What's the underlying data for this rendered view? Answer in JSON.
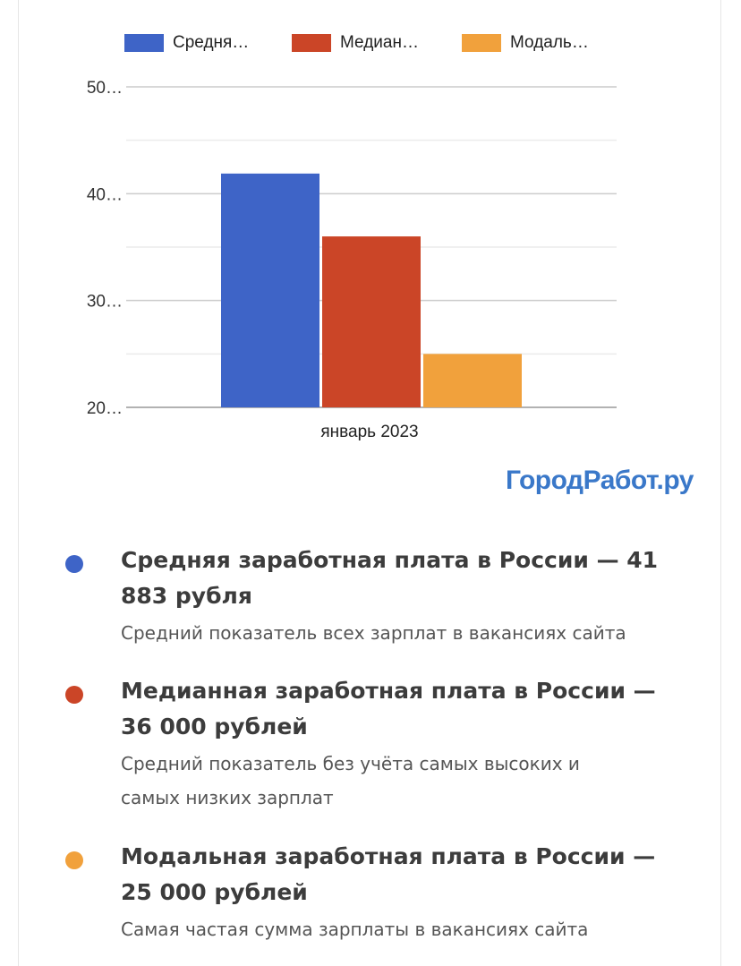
{
  "chart_data": {
    "type": "bar",
    "categories": [
      "январь 2023"
    ],
    "series": [
      {
        "name": "Средня…",
        "values": [
          41883
        ],
        "color": "#3e64c7"
      },
      {
        "name": "Медиан…",
        "values": [
          36000
        ],
        "color": "#cb4527"
      },
      {
        "name": "Модаль…",
        "values": [
          25000
        ],
        "color": "#f1a13c"
      }
    ],
    "y_ticks": [
      {
        "value": 20000,
        "label": "20…"
      },
      {
        "value": 30000,
        "label": "30…"
      },
      {
        "value": 40000,
        "label": "40…"
      },
      {
        "value": 50000,
        "label": "50…"
      }
    ],
    "ylim": [
      20000,
      50000
    ],
    "grid": true,
    "legend_position": "top"
  },
  "watermark": "ГородРабот.ру",
  "info_items": [
    {
      "title": "Средняя заработная плата в России — 41 883 рубля",
      "title_lines": [
        "Средняя заработная плата в России — 41",
        "883 рубля"
      ],
      "description_lines": [
        "Средний показатель всех зарплат в вакансиях сайта"
      ],
      "color": "#3e64c7"
    },
    {
      "title": "Медианная заработная плата в России — 36 000 рублей",
      "title_lines": [
        "Медианная заработная плата в России —",
        "36 000 рублей"
      ],
      "description_lines": [
        "Средний показатель без учёта самых высоких и",
        "самых низких зарплат"
      ],
      "color": "#cb4527"
    },
    {
      "title": "Модальная заработная плата в России — 25 000 рублей",
      "title_lines": [
        "Модальная заработная плата в России —",
        "25 000 рублей"
      ],
      "description_lines": [
        "Самая частая сумма зарплаты в вакансиях сайта"
      ],
      "color": "#f1a13c"
    }
  ]
}
